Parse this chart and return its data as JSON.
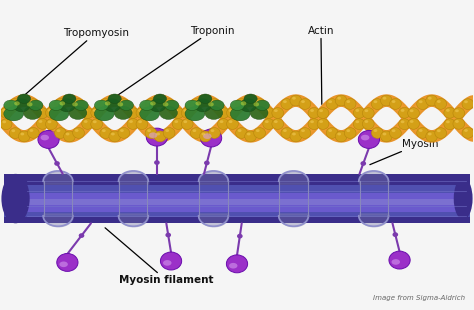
{
  "background_color": "#f5f5f5",
  "actin_strand_color": "#E8952A",
  "actin_bead_color": "#D4A017",
  "actin_bead_edge": "#B8860B",
  "tropomyosin_colors": [
    "#2E7D32",
    "#388E3C",
    "#1B5E20",
    "#43A047",
    "#4CAF50"
  ],
  "myosin_filament_colors": [
    "#4B3F9E",
    "#5C4FBF",
    "#6A5ACD",
    "#7B68CC",
    "#5C4FBF",
    "#4B3F9E"
  ],
  "myosin_head_fill": "#9B30C8",
  "myosin_head_edge": "#6A0DAD",
  "myosin_neck_color": "#7B3AAD",
  "myosin_highlight": "#D8A0F0",
  "coil_color": "#8878CC",
  "labels": {
    "tropomyosin": "Tropomyosin",
    "troponin": "Troponin",
    "actin": "Actin",
    "myosin": "Myosin",
    "myosin_filament": "Myosin filament",
    "image_credit": "Image from Sigma-Aldrich"
  },
  "figsize": [
    4.74,
    3.1
  ],
  "dpi": 100
}
